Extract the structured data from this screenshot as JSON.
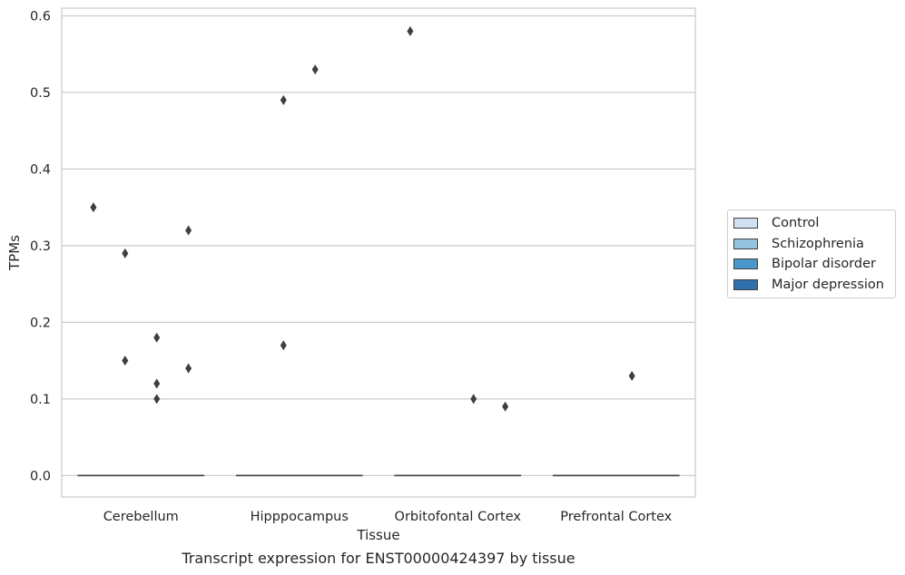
{
  "chart_data": {
    "type": "boxplot",
    "xlabel": "Tissue",
    "ylabel": "TPMs",
    "caption": "Transcript expression for ENST00000424397 by tissue",
    "categories": [
      "Cerebellum",
      "Hipppocampus",
      "Orbitofontal Cortex",
      "Prefrontal Cortex"
    ],
    "ylim": [
      -0.028,
      0.61
    ],
    "yticks": [
      0.0,
      0.1,
      0.2,
      0.3,
      0.4,
      0.5,
      0.6
    ],
    "ytick_labels": [
      "0.0",
      "0.1",
      "0.2",
      "0.3",
      "0.4",
      "0.5",
      "0.6"
    ],
    "grid": true,
    "legend_position": "right",
    "series": [
      {
        "name": "Control",
        "color": "#d0e1f2",
        "medians": [
          0,
          0,
          0,
          0
        ],
        "outliers": [
          [
            0.35
          ],
          [],
          [
            0.58
          ],
          []
        ]
      },
      {
        "name": "Schizophrenia",
        "color": "#94c4df",
        "medians": [
          0,
          0,
          0,
          0
        ],
        "outliers": [
          [
            0.29,
            0.15
          ],
          [
            0.17,
            0.49
          ],
          [],
          []
        ]
      },
      {
        "name": "Bipolar disorder",
        "color": "#4a98c9",
        "medians": [
          0,
          0,
          0,
          0
        ],
        "outliers": [
          [
            0.18,
            0.12,
            0.1
          ],
          [
            0.53
          ],
          [
            0.1
          ],
          [
            0.13
          ]
        ]
      },
      {
        "name": "Major depression",
        "color": "#2e6fad",
        "medians": [
          0,
          0,
          0,
          0
        ],
        "outliers": [
          [
            0.32,
            0.14
          ],
          [],
          [
            0.09
          ],
          []
        ]
      }
    ]
  }
}
